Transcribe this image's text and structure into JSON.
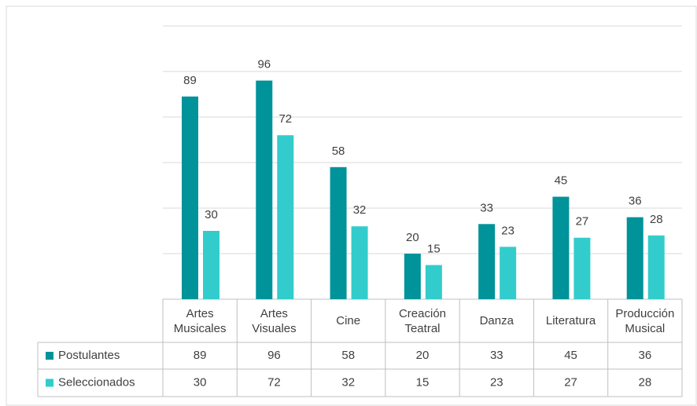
{
  "chart_data": {
    "type": "bar",
    "categories": [
      "Artes Musicales",
      "Artes Visuales",
      "Cine",
      "Creación Teatral",
      "Danza",
      "Literatura",
      "Producción Musical"
    ],
    "series": [
      {
        "name": "Postulantes",
        "color": "#00939a",
        "values": [
          89,
          96,
          58,
          20,
          33,
          45,
          36
        ]
      },
      {
        "name": "Seleccionados",
        "color": "#33cccc",
        "values": [
          30,
          72,
          32,
          15,
          23,
          27,
          28
        ]
      }
    ],
    "ylim": [
      0,
      120
    ],
    "yticks": [
      0,
      20,
      40,
      60,
      80,
      100,
      120
    ],
    "grid": true
  }
}
